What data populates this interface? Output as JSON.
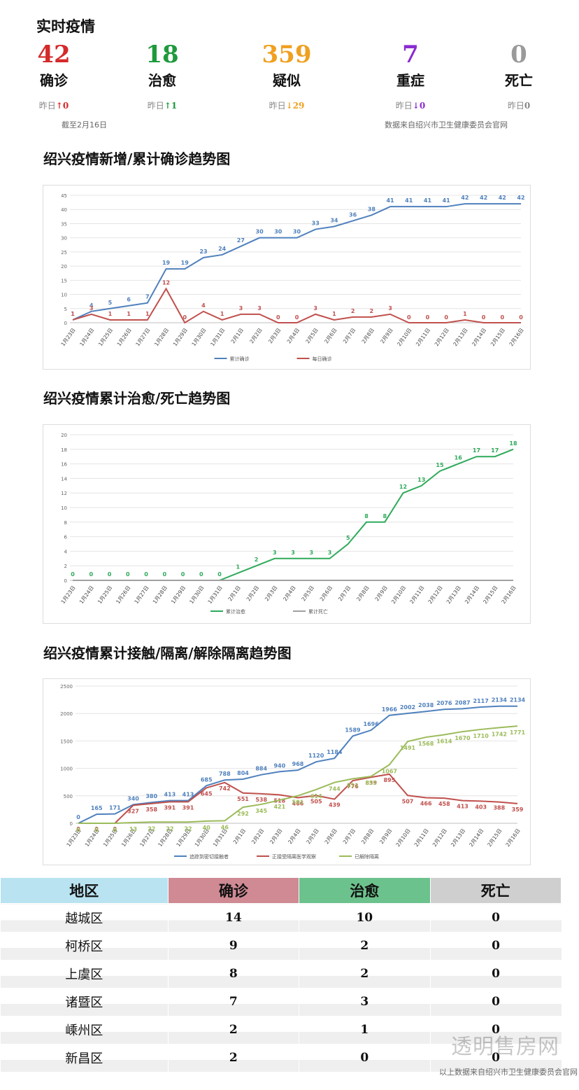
{
  "header": {
    "title": "实时疫情",
    "as_of": "截至2月16日",
    "source": "数据来自绍兴市卫生健康委员会官网"
  },
  "stats": [
    {
      "value": "42",
      "label": "确诊",
      "yesterday": "昨日",
      "arrow": "↑",
      "change": "0",
      "color": "#d42a2a"
    },
    {
      "value": "18",
      "label": "治愈",
      "yesterday": "昨日",
      "arrow": "↑",
      "change": "1",
      "color": "#1e9a3c"
    },
    {
      "value": "359",
      "label": "疑似",
      "yesterday": "昨日",
      "arrow": "↓",
      "change": "29",
      "color": "#f0a020"
    },
    {
      "value": "7",
      "label": "重症",
      "yesterday": "昨日",
      "arrow": "↓",
      "change": "0",
      "color": "#8a2bd0"
    },
    {
      "value": "0",
      "label": "死亡",
      "yesterday": "昨日",
      "arrow": "",
      "change": "0",
      "color": "#9a9a9a"
    }
  ],
  "chart_titles": [
    "绍兴疫情新增/累计确诊趋势图",
    "绍兴疫情累计治愈/死亡趋势图",
    "绍兴疫情累计接触/隔离/解除隔离趋势图"
  ],
  "chart_data": [
    {
      "type": "line",
      "title": "绍兴疫情新增/累计确诊趋势图",
      "categories": [
        "1月23日",
        "1月24日",
        "1月25日",
        "1月26日",
        "1月27日",
        "1月28日",
        "1月29日",
        "1月30日",
        "1月31日",
        "2月1日",
        "2月2日",
        "2月3日",
        "2月4日",
        "2月5日",
        "2月6日",
        "2月7日",
        "2月8日",
        "2月9日",
        "2月10日",
        "2月11日",
        "2月12日",
        "2月13日",
        "2月14日",
        "2月15日",
        "2月16日"
      ],
      "ylim": [
        0,
        45
      ],
      "yticks": [
        0,
        5,
        10,
        15,
        20,
        25,
        30,
        35,
        40,
        45
      ],
      "grid": true,
      "legend_position": "bottom",
      "series": [
        {
          "name": "累计确诊",
          "color": "#4f81bd",
          "values": [
            1,
            4,
            5,
            6,
            7,
            19,
            19,
            23,
            24,
            27,
            30,
            30,
            30,
            33,
            34,
            36,
            38,
            41,
            41,
            41,
            41,
            42,
            42,
            42,
            42
          ]
        },
        {
          "name": "每日确诊",
          "color": "#c0504d",
          "values": [
            1,
            3,
            1,
            1,
            1,
            12,
            0,
            4,
            1,
            3,
            3,
            0,
            0,
            3,
            1,
            2,
            2,
            3,
            0,
            0,
            0,
            1,
            0,
            0,
            0
          ]
        }
      ]
    },
    {
      "type": "line",
      "title": "绍兴疫情累计治愈/死亡趋势图",
      "categories": [
        "1月23日",
        "1月24日",
        "1月25日",
        "1月26日",
        "1月27日",
        "1月28日",
        "1月29日",
        "1月30日",
        "1月31日",
        "2月1日",
        "2月2日",
        "2月3日",
        "2月4日",
        "2月5日",
        "2月6日",
        "2月7日",
        "2月8日",
        "2月9日",
        "2月10日",
        "2月11日",
        "2月12日",
        "2月13日",
        "2月14日",
        "2月15日",
        "2月16日"
      ],
      "ylim": [
        0,
        20
      ],
      "yticks": [
        0,
        2,
        4,
        6,
        8,
        10,
        12,
        14,
        16,
        18,
        20
      ],
      "grid": true,
      "legend_position": "bottom",
      "series": [
        {
          "name": "累计治愈",
          "color": "#2eaa5a",
          "values": [
            0,
            0,
            0,
            0,
            0,
            0,
            0,
            0,
            0,
            1,
            2,
            3,
            3,
            3,
            3,
            5,
            8,
            8,
            12,
            13,
            15,
            16,
            17,
            17,
            18
          ]
        },
        {
          "name": "累计死亡",
          "color": "#a0a0a0",
          "values": [
            0,
            0,
            0,
            0,
            0,
            0,
            0,
            0,
            0,
            0,
            0,
            0,
            0,
            0,
            0,
            0,
            0,
            0,
            0,
            0,
            0,
            0,
            0,
            0,
            0
          ]
        }
      ]
    },
    {
      "type": "line",
      "title": "绍兴疫情累计接触/隔离/解除隔离趋势图",
      "categories": [
        "1月23日",
        "1月24日",
        "1月25日",
        "1月26日",
        "1月27日",
        "1月28日",
        "1月29日",
        "1月30日",
        "1月31日",
        "2月1日",
        "2月2日",
        "2月3日",
        "2月4日",
        "2月5日",
        "2月6日",
        "2月7日",
        "2月8日",
        "2月9日",
        "2月10日",
        "2月11日",
        "2月12日",
        "2月13日",
        "2月14日",
        "2月15日",
        "2月16日"
      ],
      "ylim": [
        0,
        2500
      ],
      "yticks": [
        0,
        500,
        1000,
        1500,
        2000,
        2500
      ],
      "grid": true,
      "legend_position": "bottom",
      "series": [
        {
          "name": "追踪到密切接触者",
          "color": "#4f81bd",
          "values": [
            0,
            165,
            171,
            340,
            380,
            413,
            413,
            685,
            788,
            804,
            884,
            940,
            968,
            1120,
            1184,
            1589,
            1696,
            1966,
            2002,
            2038,
            2076,
            2087,
            2117,
            2134,
            2134
          ]
        },
        {
          "name": "正接受隔离医学观察",
          "color": "#c0504d",
          "values": [
            0,
            0,
            0,
            327,
            358,
            391,
            391,
            645,
            742,
            551,
            538,
            518,
            466,
            505,
            439,
            776,
            839,
            895,
            507,
            466,
            458,
            413,
            403,
            388,
            359
          ]
        },
        {
          "name": "已解除隔离",
          "color": "#9bbb59",
          "values": [
            0,
            0,
            0,
            13,
            22,
            22,
            22,
            40,
            46,
            292,
            345,
            421,
            501,
            614,
            744,
            811,
            855,
            1067,
            1491,
            1568,
            1614,
            1670,
            1710,
            1742,
            1771
          ]
        }
      ]
    }
  ],
  "table": {
    "headers": [
      "地区",
      "确诊",
      "治愈",
      "死亡"
    ],
    "header_colors": [
      "#b9e3f0",
      "#cf8a94",
      "#6cc28c",
      "#cfcfcf"
    ],
    "rows": [
      [
        "越城区",
        "14",
        "10",
        "0"
      ],
      [
        "柯桥区",
        "9",
        "2",
        "0"
      ],
      [
        "上虞区",
        "8",
        "2",
        "0"
      ],
      [
        "诸暨区",
        "7",
        "3",
        "0"
      ],
      [
        "嵊州区",
        "2",
        "1",
        "0"
      ],
      [
        "新昌区",
        "2",
        "0",
        "0"
      ]
    ]
  },
  "watermark": "透明售房网",
  "footer_source": "以上数据来自绍兴市卫生健康委员会官网"
}
